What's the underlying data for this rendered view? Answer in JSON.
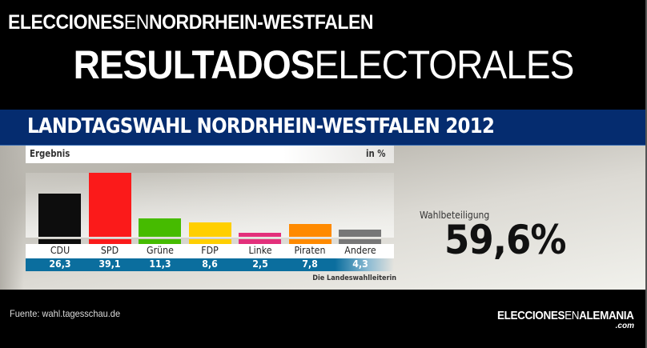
{
  "header": {
    "subtitle_bold_1": "ELECCIONES",
    "subtitle_thin": "EN",
    "subtitle_bold_2": "NORDRHEIN-WESTFALEN",
    "title_bold": "RESULTADOS",
    "title_thin": "ELECTORALES"
  },
  "banner": {
    "title": "LANDTAGSWAHL NORDRHEIN-WESTFALEN 2012",
    "color": "#052c6f"
  },
  "chart_header": {
    "left": "Ergebnis",
    "unit": "in %"
  },
  "turnout": {
    "label": "Wahlbeteiligung",
    "value": "59,6%"
  },
  "chart_source": "Die Landeswahlleiterin",
  "footer": {
    "source": "Fuente: wahl.tagesschau.de",
    "logo_bold_1": "ELECCIONES",
    "logo_thin": "EN",
    "logo_bold_2": "ALEMANIA",
    "logo_domain": ".com"
  },
  "chart_data": {
    "type": "bar",
    "title": "LANDTAGSWAHL NORDRHEIN-WESTFALEN 2012",
    "subtitle": "Ergebnis",
    "xlabel": "",
    "ylabel": "in %",
    "categories": [
      "CDU",
      "SPD",
      "Grüne",
      "FDP",
      "Linke",
      "Piraten",
      "Andere"
    ],
    "values": [
      26.3,
      39.1,
      11.3,
      8.6,
      2.5,
      7.8,
      4.3
    ],
    "value_labels": [
      "26,3",
      "39,1",
      "11,3",
      "8,6",
      "2,5",
      "7,8",
      "4,3"
    ],
    "colors": [
      "#0d0d0d",
      "#fb1a1a",
      "#46bb00",
      "#ffcf00",
      "#e3307b",
      "#ff8a00",
      "#777777"
    ],
    "ylim": [
      0,
      40
    ],
    "grid": false,
    "legend": "none",
    "annotations": [
      "Wahlbeteiligung 59,6%",
      "Die Landeswahlleiterin"
    ]
  }
}
